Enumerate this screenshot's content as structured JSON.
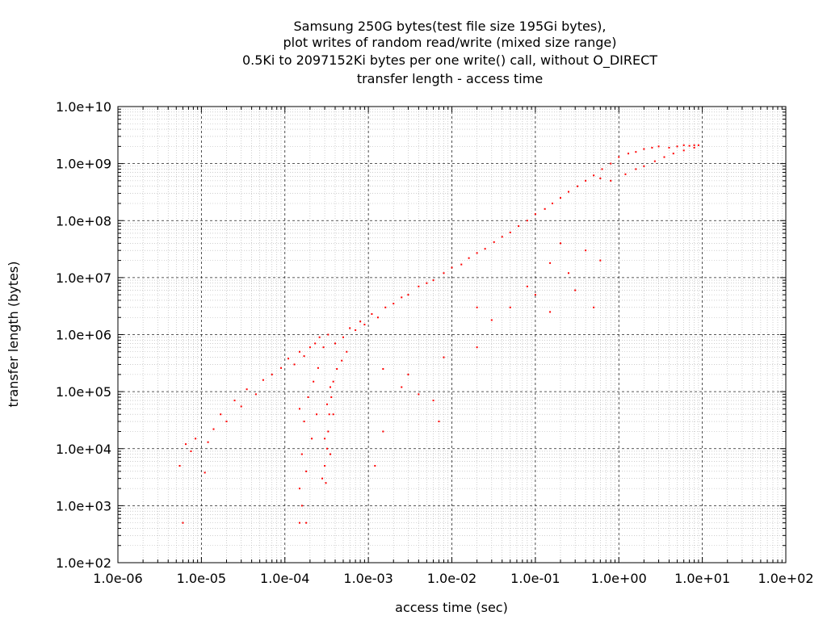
{
  "chart_data": {
    "type": "scatter",
    "title_lines": [
      "Samsung 250G bytes(test file size 195Gi bytes),",
      "plot writes of random read/write (mixed size range)",
      "0.5Ki to 2097152Ki bytes per one write() call, without O_DIRECT",
      "transfer length - access time"
    ],
    "xlabel": "access time (sec)",
    "ylabel": "transfer length (bytes)",
    "x_scale": "log",
    "y_scale": "log",
    "xlim": [
      1e-06,
      100
    ],
    "ylim": [
      100,
      10000000000.0
    ],
    "x_tick_values": [
      1e-06,
      1e-05,
      0.0001,
      0.001,
      0.01,
      0.1,
      1,
      10,
      100
    ],
    "x_tick_labels": [
      "1.0e-06",
      "1.0e-05",
      "1.0e-04",
      "1.0e-03",
      "1.0e-02",
      "1.0e-01",
      "1.0e+00",
      "1.0e+01",
      "1.0e+02"
    ],
    "y_tick_values": [
      100,
      1000,
      10000,
      100000,
      1000000,
      10000000,
      100000000,
      1000000000,
      10000000000
    ],
    "y_tick_labels": [
      "1.0e+02",
      "1.0e+03",
      "1.0e+04",
      "1.0e+05",
      "1.0e+06",
      "1.0e+07",
      "1.0e+08",
      "1.0e+09",
      "1.0e+10"
    ],
    "grid": true,
    "minor_grid": true,
    "legend": "none",
    "point_color": "#ff0000",
    "series": [
      {
        "points": [
          [
            5.5e-06,
            5000
          ],
          [
            6e-06,
            500
          ],
          [
            6.5e-06,
            12000
          ],
          [
            7.5e-06,
            9000
          ],
          [
            8.5e-06,
            15000
          ],
          [
            1.1e-05,
            3800
          ],
          [
            1.2e-05,
            13000
          ],
          [
            1.4e-05,
            22000
          ],
          [
            1.7e-05,
            40000
          ],
          [
            2e-05,
            30000
          ],
          [
            2.5e-05,
            70000
          ],
          [
            3e-05,
            55000
          ],
          [
            3.5e-05,
            110000
          ],
          [
            4.5e-05,
            90000
          ],
          [
            5.5e-05,
            160000
          ],
          [
            7e-05,
            200000
          ],
          [
            9e-05,
            260000
          ],
          [
            0.00011,
            380000
          ],
          [
            0.00013,
            300000
          ],
          [
            0.00015,
            500000
          ],
          [
            0.00017,
            420000
          ],
          [
            0.0002,
            600000
          ],
          [
            0.00023,
            700000
          ],
          [
            0.00026,
            900000
          ],
          [
            0.00029,
            600000
          ],
          [
            0.00033,
            1000000
          ],
          [
            0.0004,
            700000
          ],
          [
            0.0005,
            900000
          ],
          [
            0.0006,
            1300000
          ],
          [
            0.0007,
            1200000
          ],
          [
            0.0008,
            1700000
          ],
          [
            0.0009,
            1500000
          ],
          [
            0.0011,
            2300000
          ],
          [
            0.0013,
            2000000
          ],
          [
            0.0016,
            3000000
          ],
          [
            0.002,
            3500000
          ],
          [
            0.0025,
            4500000
          ],
          [
            0.003,
            5000000
          ],
          [
            0.004,
            7000000
          ],
          [
            0.005,
            8000000
          ],
          [
            0.006,
            9000000
          ],
          [
            0.008,
            12000000
          ],
          [
            0.01,
            15000000
          ],
          [
            0.013,
            17000000
          ],
          [
            0.016,
            22000000
          ],
          [
            0.02,
            27000000
          ],
          [
            0.025,
            32000000
          ],
          [
            0.032,
            42000000
          ],
          [
            0.04,
            52000000
          ],
          [
            0.05,
            62000000
          ],
          [
            0.063,
            80000000
          ],
          [
            0.08,
            100000000
          ],
          [
            0.1,
            130000000
          ],
          [
            0.13,
            160000000
          ],
          [
            0.16,
            200000000
          ],
          [
            0.2,
            250000000
          ],
          [
            0.25,
            320000000
          ],
          [
            0.32,
            400000000
          ],
          [
            0.4,
            500000000
          ],
          [
            0.5,
            620000000
          ],
          [
            0.63,
            800000000
          ],
          [
            0.8,
            1000000000
          ],
          [
            1,
            1300000000
          ],
          [
            1.3,
            1500000000
          ],
          [
            1.6,
            1600000000
          ],
          [
            2,
            1800000000
          ],
          [
            2.5,
            1900000000
          ],
          [
            3,
            2000000000
          ],
          [
            4,
            1900000000
          ],
          [
            5,
            2000000000
          ],
          [
            6,
            2100000000
          ],
          [
            7,
            2050000000
          ],
          [
            8,
            2100000000
          ],
          [
            9,
            2100000000
          ],
          [
            0.6,
            550000000
          ],
          [
            0.8,
            500000000
          ],
          [
            1.2,
            650000000
          ],
          [
            1.6,
            800000000
          ],
          [
            2,
            900000000
          ],
          [
            2.7,
            1100000000
          ],
          [
            3.5,
            1300000000
          ],
          [
            4.5,
            1500000000
          ],
          [
            6,
            1700000000
          ],
          [
            8,
            1900000000
          ],
          [
            0.00015,
            50000
          ],
          [
            0.00017,
            30000
          ],
          [
            0.00019,
            80000
          ],
          [
            0.00022,
            150000
          ],
          [
            0.00025,
            260000
          ],
          [
            0.00016,
            8000
          ],
          [
            0.00018,
            4000
          ],
          [
            0.00015,
            2000
          ],
          [
            0.00016,
            1000
          ],
          [
            0.00015,
            500
          ],
          [
            0.00018,
            500
          ],
          [
            0.00021,
            15000
          ],
          [
            0.00024,
            40000
          ],
          [
            0.00028,
            3000
          ],
          [
            0.0003,
            5000
          ],
          [
            0.00032,
            10000
          ],
          [
            0.00033,
            20000
          ],
          [
            0.00034,
            40000
          ],
          [
            0.00036,
            80000
          ],
          [
            0.00038,
            150000
          ],
          [
            0.00042,
            250000
          ],
          [
            0.00048,
            350000
          ],
          [
            0.00055,
            500000
          ],
          [
            0.00031,
            2500
          ],
          [
            0.00035,
            8000
          ],
          [
            0.0003,
            15000
          ],
          [
            0.00032,
            60000
          ],
          [
            0.00035,
            120000
          ],
          [
            0.00038,
            40000
          ],
          [
            0.0015,
            250000
          ],
          [
            0.0025,
            120000
          ],
          [
            0.004,
            90000
          ],
          [
            0.006,
            70000
          ],
          [
            0.003,
            200000
          ],
          [
            0.008,
            400000
          ],
          [
            0.02,
            600000
          ],
          [
            0.03,
            1800000
          ],
          [
            0.05,
            3000000
          ],
          [
            0.1,
            5000000
          ],
          [
            0.15,
            2500000
          ],
          [
            0.25,
            12000000
          ],
          [
            0.3,
            6000000
          ],
          [
            0.5,
            3000000
          ],
          [
            0.4,
            30000000
          ],
          [
            0.6,
            20000000
          ],
          [
            0.2,
            40000000
          ],
          [
            0.15,
            18000000
          ],
          [
            0.08,
            7000000
          ],
          [
            0.0015,
            20000
          ],
          [
            0.007,
            30000
          ],
          [
            0.02,
            3000000
          ],
          [
            0.0012,
            5000
          ]
        ]
      }
    ]
  }
}
